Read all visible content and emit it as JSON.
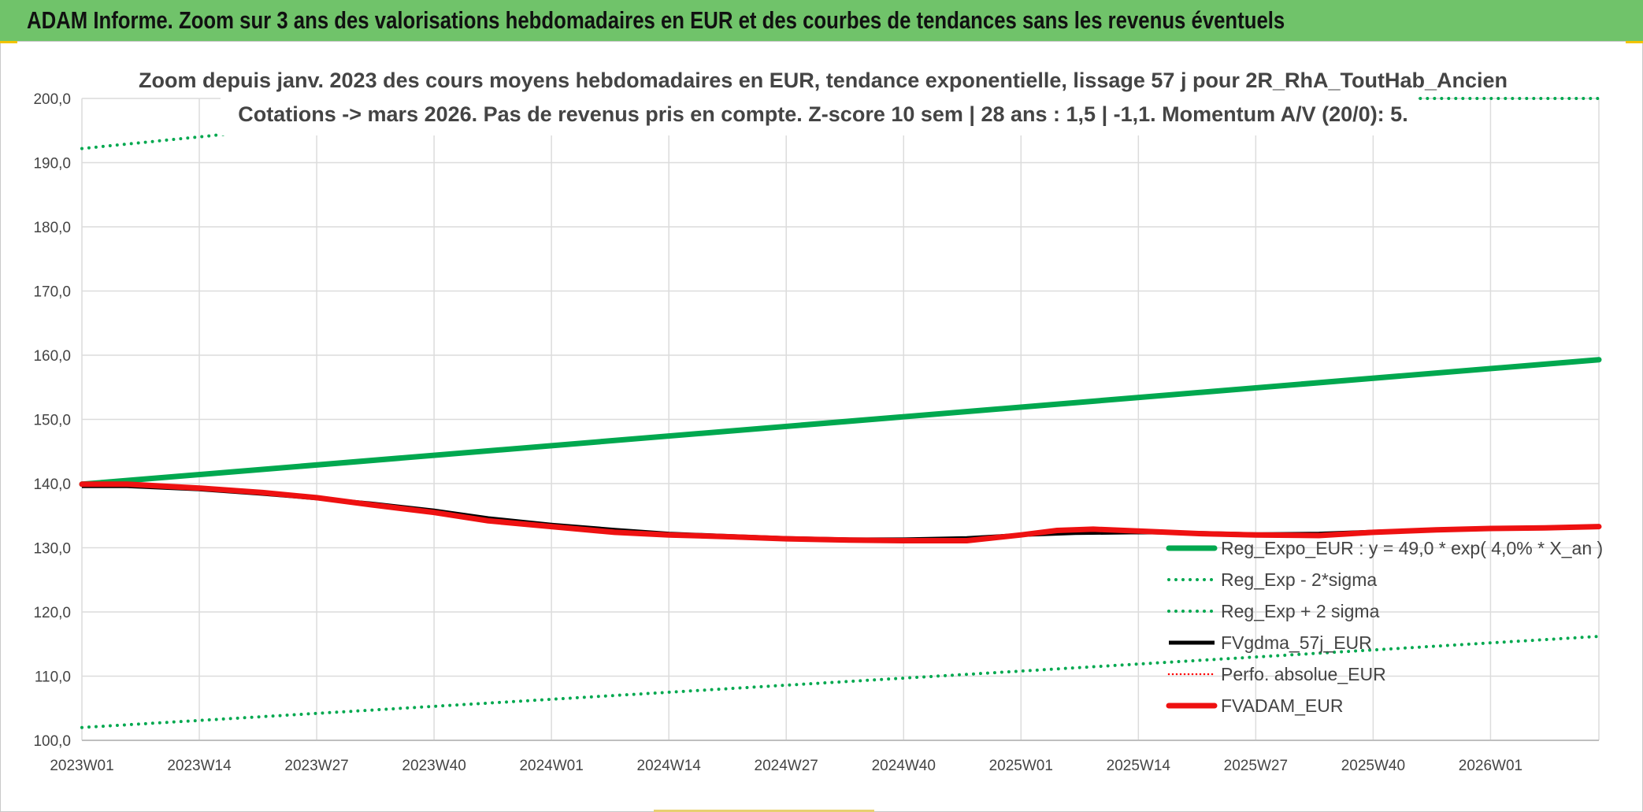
{
  "banner": {
    "title": "ADAM Informe. Zoom sur 3 ans des valorisations hebdomadaires en EUR et des courbes de tendances sans les revenus éventuels"
  },
  "colors": {
    "banner_bg": "#70c36a",
    "trend": "#00a84f",
    "sigma": "#00a84f",
    "fvgdma": "#000000",
    "perfo": "#ff0000",
    "fvadam": "#ee1111",
    "grid": "#dcdcdc"
  },
  "chart_data": {
    "type": "line",
    "title": [
      "Zoom depuis janv. 2023 des cours moyens hebdomadaires en EUR, tendance exponentielle, lissage 57 j pour 2R_RhA_ToutHab_Ancien",
      "Cotations -> mars 2026. Pas de revenus pris en compte. Z-score 10 sem | 28 ans : 1,5 | -1,1. Momentum A/V (20/0): 5."
    ],
    "x_axis": {
      "tick_labels": [
        "2023W01",
        "2023W14",
        "2023W27",
        "2023W40",
        "2024W01",
        "2024W14",
        "2024W27",
        "2024W40",
        "2025W01",
        "2025W14",
        "2025W27",
        "2025W40",
        "2026W01"
      ],
      "tick_index": [
        0,
        13,
        26,
        39,
        52,
        65,
        78,
        91,
        104,
        117,
        130,
        143,
        156
      ],
      "n_weeks": 169
    },
    "y_axis": {
      "min": 100,
      "max": 200,
      "step": 10,
      "tick_labels": [
        "100,0",
        "110,0",
        "120,0",
        "130,0",
        "140,0",
        "150,0",
        "160,0",
        "170,0",
        "180,0",
        "190,0",
        "200,0"
      ]
    },
    "grid": true,
    "legend_position": "bottom-right",
    "series": [
      {
        "name": "Reg_Expo_EUR : y = 49,0 * exp( 4,0% *  X_an )",
        "style": "solid-thick",
        "points": [
          [
            0,
            139.9
          ],
          [
            168,
            159.3
          ]
        ]
      },
      {
        "name": "Reg_Exp - 2*sigma",
        "style": "dotted",
        "points": [
          [
            0,
            102.0
          ],
          [
            168,
            116.2
          ]
        ]
      },
      {
        "name": "Reg_Exp + 2 sigma",
        "style": "dotted",
        "points": [
          [
            0,
            192.2
          ],
          [
            20,
            195.0
          ],
          [
            148,
            200.0
          ],
          [
            168,
            200.0
          ]
        ]
      },
      {
        "name": "FVgdma_57j_EUR",
        "style": "solid",
        "points": [
          [
            0,
            139.6
          ],
          [
            5,
            139.6
          ],
          [
            13,
            139.1
          ],
          [
            20,
            138.4
          ],
          [
            26,
            137.7
          ],
          [
            32,
            136.9
          ],
          [
            39,
            135.8
          ],
          [
            45,
            134.6
          ],
          [
            52,
            133.6
          ],
          [
            59,
            132.8
          ],
          [
            65,
            132.2
          ],
          [
            72,
            131.8
          ],
          [
            78,
            131.5
          ],
          [
            85,
            131.3
          ],
          [
            91,
            131.3
          ],
          [
            98,
            131.5
          ],
          [
            104,
            132.0
          ],
          [
            110,
            132.3
          ],
          [
            117,
            132.4
          ],
          [
            124,
            132.3
          ],
          [
            130,
            132.1
          ],
          [
            137,
            132.2
          ],
          [
            143,
            132.5
          ],
          [
            150,
            132.8
          ],
          [
            156,
            133.0
          ],
          [
            162,
            133.1
          ],
          [
            168,
            133.2
          ]
        ]
      },
      {
        "name": "Perfo. absolue_EUR",
        "style": "dotted-thin",
        "points": []
      },
      {
        "name": "FVADAM_EUR",
        "style": "solid-thick",
        "points": [
          [
            0,
            139.9
          ],
          [
            5,
            139.9
          ],
          [
            13,
            139.3
          ],
          [
            20,
            138.6
          ],
          [
            26,
            137.8
          ],
          [
            32,
            136.7
          ],
          [
            39,
            135.5
          ],
          [
            45,
            134.2
          ],
          [
            52,
            133.3
          ],
          [
            59,
            132.4
          ],
          [
            65,
            132.0
          ],
          [
            72,
            131.7
          ],
          [
            78,
            131.4
          ],
          [
            85,
            131.2
          ],
          [
            91,
            131.1
          ],
          [
            98,
            131.1
          ],
          [
            104,
            132.0
          ],
          [
            108,
            132.7
          ],
          [
            112,
            132.9
          ],
          [
            117,
            132.6
          ],
          [
            124,
            132.2
          ],
          [
            130,
            132.0
          ],
          [
            137,
            131.9
          ],
          [
            143,
            132.4
          ],
          [
            150,
            132.8
          ],
          [
            156,
            133.0
          ],
          [
            162,
            133.1
          ],
          [
            168,
            133.3
          ]
        ]
      }
    ]
  }
}
